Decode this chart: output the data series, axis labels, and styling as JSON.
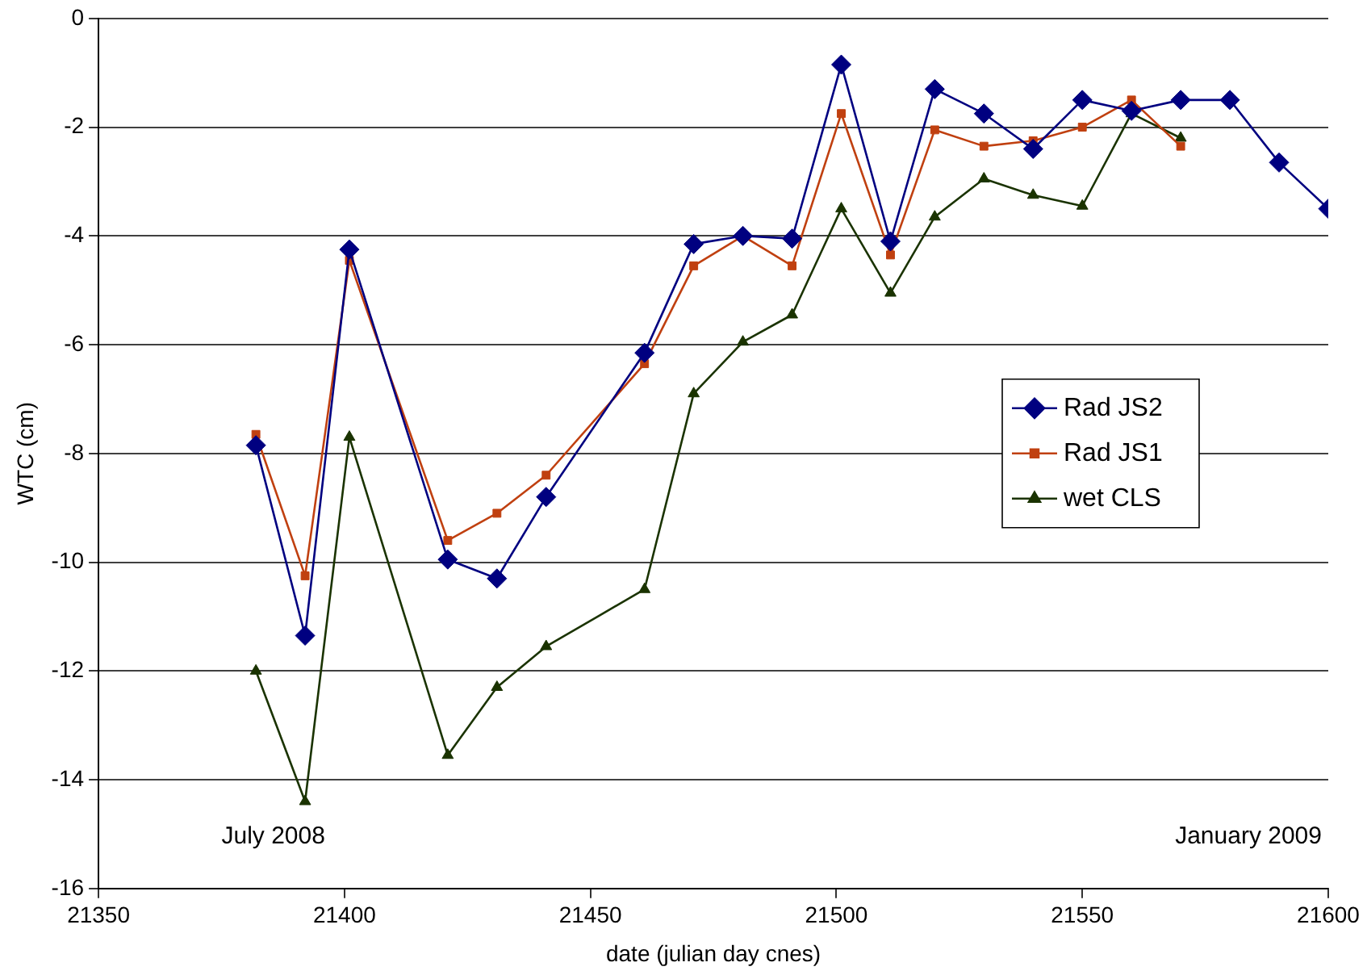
{
  "chart_data": {
    "type": "line",
    "xlabel": "date (julian day cnes)",
    "ylabel": "WTC (cm)",
    "xlim": [
      21350,
      21600
    ],
    "xticks": [
      21350,
      21400,
      21450,
      21500,
      21550,
      21600
    ],
    "ylim": [
      -16,
      0
    ],
    "yticks": [
      -16,
      -14,
      -12,
      -10,
      -8,
      -6,
      -4,
      -2,
      0
    ],
    "grid": "y",
    "legend": "right",
    "line_style": "solid",
    "series": [
      {
        "name": "Rad JS2",
        "color": "#000080",
        "marker": "diamond",
        "x": [
          21382,
          21392,
          21401,
          21421,
          21431,
          21441,
          21461,
          21471,
          21481,
          21491,
          21501,
          21511,
          21520,
          21530,
          21540,
          21550,
          21560,
          21570,
          21580,
          21590,
          21600
        ],
        "values": [
          -7.85,
          -11.35,
          -4.25,
          -9.95,
          -10.3,
          -8.8,
          -6.15,
          -4.15,
          -4.0,
          -4.05,
          -0.85,
          -4.1,
          -1.3,
          -1.75,
          -2.4,
          -1.5,
          -1.7,
          -1.5,
          -1.5,
          -2.65,
          -3.5
        ]
      },
      {
        "name": "Rad JS1",
        "color": "#c04010",
        "marker": "square",
        "x": [
          21382,
          21392,
          21401,
          21421,
          21431,
          21441,
          21461,
          21471,
          21481,
          21491,
          21501,
          21511,
          21520,
          21530,
          21540,
          21550,
          21560,
          21570
        ],
        "values": [
          -7.65,
          -10.25,
          -4.45,
          -9.6,
          -9.1,
          -8.4,
          -6.35,
          -4.55,
          -4.0,
          -4.55,
          -1.75,
          -4.35,
          -2.05,
          -2.35,
          -2.25,
          -2.0,
          -1.5,
          -2.35
        ]
      },
      {
        "name": "wet CLS",
        "color": "#1a3300",
        "marker": "triangle",
        "x": [
          21382,
          21392,
          21401,
          21421,
          21431,
          21441,
          21461,
          21471,
          21481,
          21491,
          21501,
          21511,
          21520,
          21530,
          21540,
          21550,
          21560,
          21570
        ],
        "values": [
          -12.0,
          -14.4,
          -7.7,
          -13.55,
          -12.3,
          -11.55,
          -10.5,
          -6.9,
          -5.95,
          -5.45,
          -3.5,
          -5.05,
          -3.65,
          -2.95,
          -3.25,
          -3.45,
          -1.75,
          -2.2
        ]
      }
    ],
    "annotations": [
      "July 2008",
      "January 2009"
    ]
  }
}
